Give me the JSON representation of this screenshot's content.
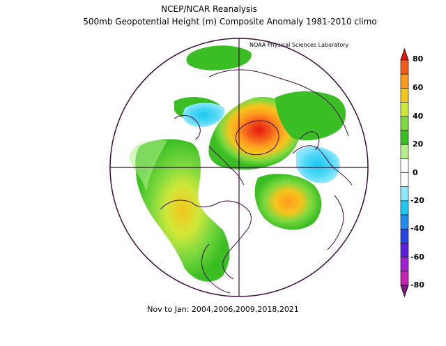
{
  "header": {
    "title": "NCEP/NCAR Reanalysis",
    "subtitle": "500mb Geopotential Height (m) Composite Anomaly 1981-2010 climo",
    "credit": "NOAA Physical Sciences Laboratory"
  },
  "footer": {
    "caption": "Nov to Jan: 2004,2006,2009,2018,2021"
  },
  "colorbar": {
    "labels": [
      "80",
      "60",
      "40",
      "20",
      "0",
      "-20",
      "-40",
      "-60",
      "-80"
    ],
    "colors": [
      "#e8170f",
      "#f25a1a",
      "#ff9a1e",
      "#f5c51e",
      "#cfe83a",
      "#7cd93f",
      "#3bbe23",
      "#b5f08c",
      "#ffffff",
      "#ffffff",
      "#8fe8ff",
      "#1ec8f0",
      "#1e8cf0",
      "#2846e6",
      "#5a1ed9",
      "#a020d2",
      "#c822b4",
      "#7a1a80"
    ]
  },
  "map": {
    "type": "north-polar-stereographic",
    "variable": "500mb geopotential height anomaly (m)",
    "anomaly_features": [
      {
        "region": "Greenland / Baffin",
        "sign": "positive",
        "peak_band": "60 to 80"
      },
      {
        "region": "North Atlantic",
        "sign": "positive",
        "peak_band": "40 to 60"
      },
      {
        "region": "North Pacific",
        "sign": "positive",
        "peak_band": "30 to 40"
      },
      {
        "region": "Northern Europe / Scandinavia",
        "sign": "negative",
        "peak_band": "-20 to -30"
      },
      {
        "region": "Eastern Siberia",
        "sign": "negative",
        "peak_band": "-20 to -30"
      }
    ]
  }
}
